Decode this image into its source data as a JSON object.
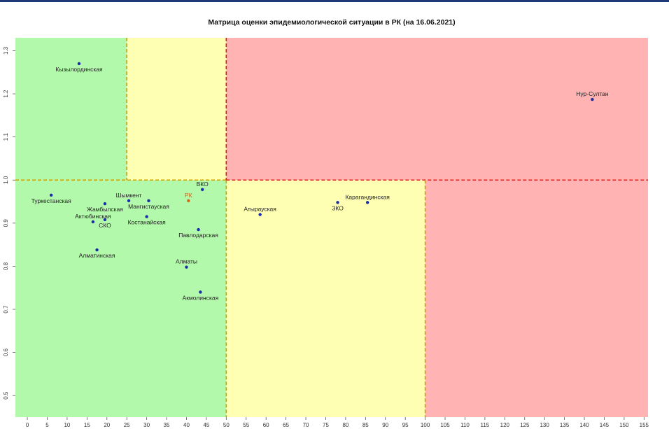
{
  "chart_data": {
    "type": "scatter",
    "title": "Матрица оценки эпидемиологической ситуации в РК (на 16.06.2021)",
    "xlabel": "",
    "ylabel": "",
    "xlim": [
      -3,
      156
    ],
    "ylim": [
      0.45,
      1.33
    ],
    "x_ticks": [
      0,
      5,
      10,
      15,
      20,
      25,
      30,
      35,
      40,
      45,
      50,
      55,
      60,
      65,
      70,
      75,
      80,
      85,
      90,
      95,
      100,
      105,
      110,
      115,
      120,
      125,
      130,
      135,
      140,
      145,
      150,
      155
    ],
    "x_tick_labels": [
      "0",
      "5",
      "10",
      "15",
      "20",
      "25",
      "30",
      "35",
      "40",
      "45",
      "50",
      "55",
      "60",
      "65",
      "70",
      "75",
      "80",
      "85",
      "90",
      "95",
      "100",
      "105",
      "110",
      "115",
      "120",
      "125",
      "130",
      "135",
      "140",
      "145",
      "150",
      "155"
    ],
    "y_ticks": [
      0.5,
      0.6,
      0.7,
      0.8,
      0.9,
      1.0,
      1.1,
      1.2,
      1.3
    ],
    "y_tick_labels": [
      "0.5",
      "0.6",
      "0.7",
      "0.8",
      "0.9",
      "1.0",
      "1.1",
      "1.2",
      "1.3"
    ],
    "grid": false,
    "zones": [
      {
        "x": [
          -3,
          25
        ],
        "y": [
          1.0,
          1.33
        ],
        "color": "#b3f9ab"
      },
      {
        "x": [
          25,
          50
        ],
        "y": [
          1.0,
          1.33
        ],
        "color": "#ffffb3"
      },
      {
        "x": [
          50,
          156
        ],
        "y": [
          1.0,
          1.33
        ],
        "color": "#ffb3b3"
      },
      {
        "x": [
          -3,
          50
        ],
        "y": [
          0.45,
          1.0
        ],
        "color": "#b3f9ab"
      },
      {
        "x": [
          50,
          100
        ],
        "y": [
          0.45,
          1.0
        ],
        "color": "#ffffb3"
      },
      {
        "x": [
          100,
          156
        ],
        "y": [
          0.45,
          1.0
        ],
        "color": "#ffb3b3"
      }
    ],
    "threshold_lines": [
      {
        "orientation": "horizontal",
        "value": 1.0,
        "from": -3,
        "to": 50,
        "color": "#c8a000"
      },
      {
        "orientation": "horizontal",
        "value": 1.0,
        "from": 50,
        "to": 156,
        "color": "#dd1a1a"
      },
      {
        "orientation": "vertical",
        "value": 25,
        "from": 1.0,
        "to": 1.33,
        "color": "#c8a000"
      },
      {
        "orientation": "vertical",
        "value": 50,
        "from": 0.45,
        "to": 1.0,
        "color": "#c8a000"
      },
      {
        "orientation": "vertical",
        "value": 50,
        "from": 1.0,
        "to": 1.33,
        "color": "#dd1a1a"
      },
      {
        "orientation": "vertical",
        "value": 100,
        "from": 0.45,
        "to": 1.0,
        "color": "#c8a000"
      }
    ],
    "points": [
      {
        "label": "Кызылординская",
        "x": 13,
        "y": 1.27,
        "label_pos": "below",
        "color": "#1a2ea8",
        "label_color": "#222222"
      },
      {
        "label": "Туркестанская",
        "x": 6,
        "y": 0.965,
        "label_pos": "below",
        "color": "#1a2ea8",
        "label_color": "#222222"
      },
      {
        "label": "Жамбылская",
        "x": 19.5,
        "y": 0.945,
        "label_pos": "below",
        "color": "#1a2ea8",
        "label_color": "#222222"
      },
      {
        "label": "Актюбинская",
        "x": 16.5,
        "y": 0.903,
        "label_pos": "above",
        "color": "#1a2ea8",
        "label_color": "#222222"
      },
      {
        "label": "СКО",
        "x": 19.5,
        "y": 0.908,
        "label_pos": "below",
        "color": "#1a2ea8",
        "label_color": "#222222"
      },
      {
        "label": "Шымкент",
        "x": 25.5,
        "y": 0.952,
        "label_pos": "above",
        "color": "#1a2ea8",
        "label_color": "#222222"
      },
      {
        "label": "Мангистауская",
        "x": 30.5,
        "y": 0.952,
        "label_pos": "below",
        "color": "#1a2ea8",
        "label_color": "#222222"
      },
      {
        "label": "Костанайская",
        "x": 30,
        "y": 0.915,
        "label_pos": "below",
        "color": "#1a2ea8",
        "label_color": "#222222"
      },
      {
        "label": "Алматинская",
        "x": 17.5,
        "y": 0.838,
        "label_pos": "below",
        "color": "#1a2ea8",
        "label_color": "#222222"
      },
      {
        "label": "РК",
        "x": 40.5,
        "y": 0.952,
        "label_pos": "above",
        "color": "#d26a1a",
        "label_color": "#c86414"
      },
      {
        "label": "ВКО",
        "x": 44,
        "y": 0.978,
        "label_pos": "above",
        "color": "#1a2ea8",
        "label_color": "#222222"
      },
      {
        "label": "Павлодарская",
        "x": 43,
        "y": 0.885,
        "label_pos": "below",
        "color": "#1a2ea8",
        "label_color": "#222222"
      },
      {
        "label": "Алматы",
        "x": 40,
        "y": 0.798,
        "label_pos": "above",
        "color": "#1a2ea8",
        "label_color": "#222222"
      },
      {
        "label": "Акмолинская",
        "x": 43.5,
        "y": 0.74,
        "label_pos": "below",
        "color": "#1a2ea8",
        "label_color": "#222222"
      },
      {
        "label": "Атырауская",
        "x": 58.5,
        "y": 0.92,
        "label_pos": "above",
        "color": "#1a2ea8",
        "label_color": "#222222"
      },
      {
        "label": "ЗКО",
        "x": 78,
        "y": 0.948,
        "label_pos": "below",
        "color": "#1a2ea8",
        "label_color": "#222222"
      },
      {
        "label": "Карагандинская",
        "x": 85.5,
        "y": 0.948,
        "label_pos": "above",
        "color": "#1a2ea8",
        "label_color": "#222222"
      },
      {
        "label": "Нур-Султан",
        "x": 142,
        "y": 1.187,
        "label_pos": "above",
        "color": "#1a2ea8",
        "label_color": "#222222"
      }
    ]
  }
}
